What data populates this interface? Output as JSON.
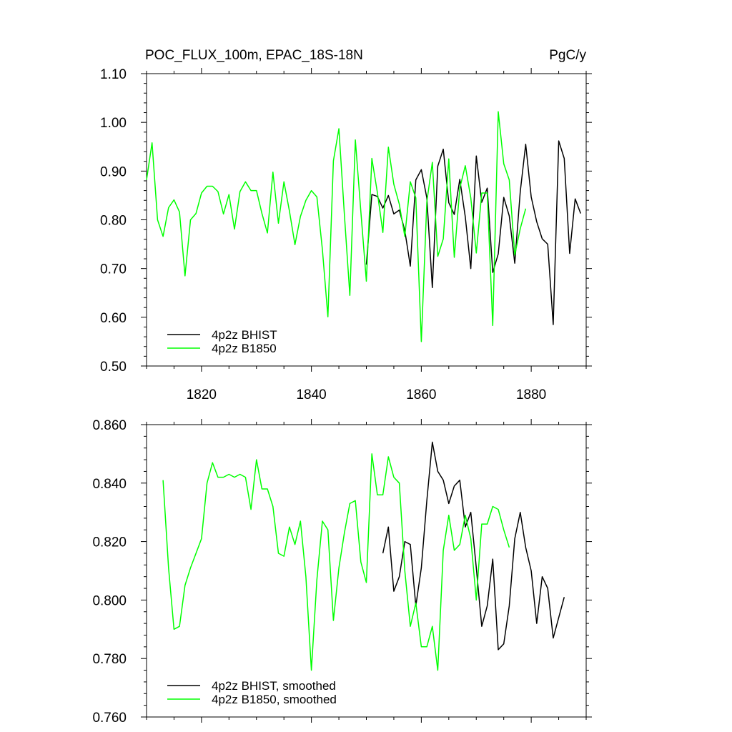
{
  "chart_data": [
    {
      "type": "line",
      "title_left": "POC_FLUX_100m, EPAC_18S-18N",
      "title_right": "PgC/y",
      "xlim": [
        1810,
        1890
      ],
      "ylim": [
        0.5,
        1.1
      ],
      "xticks": [
        1820,
        1840,
        1860,
        1880
      ],
      "xtick_labels": [
        "1820",
        "1840",
        "1860",
        "1880"
      ],
      "yticks": [
        0.5,
        0.6,
        0.7,
        0.8,
        0.9,
        1.0,
        1.1
      ],
      "ytick_labels": [
        "0.50",
        "0.60",
        "0.70",
        "0.80",
        "0.90",
        "1.00",
        "1.10"
      ],
      "legend": "bottom-left",
      "series": [
        {
          "name": "4p2z BHIST",
          "color": "#000000",
          "x": [
            1850,
            1851,
            1852,
            1853,
            1854,
            1855,
            1856,
            1857,
            1858,
            1859,
            1860,
            1861,
            1862,
            1863,
            1864,
            1865,
            1866,
            1867,
            1868,
            1869,
            1870,
            1871,
            1872,
            1873,
            1874,
            1875,
            1876,
            1877,
            1878,
            1879,
            1880,
            1881,
            1882,
            1883,
            1884,
            1885,
            1886,
            1887,
            1888,
            1889
          ],
          "y": [
            0.708,
            0.852,
            0.848,
            0.824,
            0.85,
            0.812,
            0.82,
            0.778,
            0.705,
            0.882,
            0.903,
            0.845,
            0.661,
            0.91,
            0.945,
            0.835,
            0.811,
            0.883,
            0.806,
            0.7,
            0.931,
            0.836,
            0.865,
            0.692,
            0.73,
            0.846,
            0.808,
            0.711,
            0.858,
            0.955,
            0.847,
            0.796,
            0.761,
            0.75,
            0.585,
            0.962,
            0.926,
            0.731,
            0.843,
            0.813
          ]
        },
        {
          "name": "4p2z B1850",
          "color": "#00ff00",
          "x": [
            1810,
            1811,
            1812,
            1813,
            1814,
            1815,
            1816,
            1817,
            1818,
            1819,
            1820,
            1821,
            1822,
            1823,
            1824,
            1825,
            1826,
            1827,
            1828,
            1829,
            1830,
            1831,
            1832,
            1833,
            1834,
            1835,
            1836,
            1837,
            1838,
            1839,
            1840,
            1841,
            1842,
            1843,
            1844,
            1845,
            1846,
            1847,
            1848,
            1849,
            1850,
            1851,
            1852,
            1853,
            1854,
            1855,
            1856,
            1857,
            1858,
            1859,
            1860,
            1861,
            1862,
            1863,
            1864,
            1865,
            1866,
            1867,
            1868,
            1869,
            1870,
            1871,
            1872,
            1873,
            1874,
            1875,
            1876,
            1877,
            1878,
            1879
          ],
          "y": [
            0.882,
            0.958,
            0.8,
            0.766,
            0.825,
            0.841,
            0.816,
            0.685,
            0.8,
            0.813,
            0.855,
            0.869,
            0.869,
            0.858,
            0.812,
            0.852,
            0.781,
            0.858,
            0.878,
            0.86,
            0.86,
            0.813,
            0.773,
            0.898,
            0.793,
            0.878,
            0.818,
            0.749,
            0.807,
            0.84,
            0.86,
            0.847,
            0.739,
            0.601,
            0.921,
            0.987,
            0.81,
            0.645,
            0.964,
            0.817,
            0.674,
            0.926,
            0.856,
            0.774,
            0.949,
            0.873,
            0.832,
            0.766,
            0.878,
            0.845,
            0.55,
            0.837,
            0.918,
            0.725,
            0.761,
            0.925,
            0.723,
            0.865,
            0.911,
            0.845,
            0.732,
            0.855,
            0.855,
            0.583,
            1.022,
            0.915,
            0.882,
            0.728,
            0.782,
            0.823
          ]
        }
      ]
    },
    {
      "type": "line",
      "xlim": [
        1810,
        1890
      ],
      "ylim": [
        0.76,
        0.86
      ],
      "xticks": [
        1820,
        1840,
        1860,
        1880
      ],
      "yticks": [
        0.76,
        0.78,
        0.8,
        0.82,
        0.84,
        0.86
      ],
      "ytick_labels": [
        "0.760",
        "0.780",
        "0.800",
        "0.820",
        "0.840",
        "0.860"
      ],
      "legend": "bottom-left",
      "series": [
        {
          "name": "4p2z BHIST, smoothed",
          "color": "#000000",
          "x": [
            1853,
            1854,
            1855,
            1856,
            1857,
            1858,
            1859,
            1860,
            1861,
            1862,
            1863,
            1864,
            1865,
            1866,
            1867,
            1868,
            1869,
            1870,
            1871,
            1872,
            1873,
            1874,
            1875,
            1876,
            1877,
            1878,
            1879,
            1880,
            1881,
            1882,
            1883,
            1884,
            1885,
            1886
          ],
          "y": [
            0.816,
            0.825,
            0.803,
            0.808,
            0.82,
            0.819,
            0.798,
            0.811,
            0.834,
            0.854,
            0.844,
            0.841,
            0.833,
            0.839,
            0.841,
            0.825,
            0.83,
            0.811,
            0.791,
            0.798,
            0.814,
            0.783,
            0.785,
            0.798,
            0.821,
            0.83,
            0.818,
            0.81,
            0.792,
            0.808,
            0.804,
            0.787,
            0.794,
            0.801
          ]
        },
        {
          "name": "4p2z B1850, smoothed",
          "color": "#00ff00",
          "x": [
            1813,
            1814,
            1815,
            1816,
            1817,
            1818,
            1819,
            1820,
            1821,
            1822,
            1823,
            1824,
            1825,
            1826,
            1827,
            1828,
            1829,
            1830,
            1831,
            1832,
            1833,
            1834,
            1835,
            1836,
            1837,
            1838,
            1839,
            1840,
            1841,
            1842,
            1843,
            1844,
            1845,
            1846,
            1847,
            1848,
            1849,
            1850,
            1851,
            1852,
            1853,
            1854,
            1855,
            1856,
            1857,
            1858,
            1859,
            1860,
            1861,
            1862,
            1863,
            1864,
            1865,
            1866,
            1867,
            1868,
            1869,
            1870,
            1871,
            1872,
            1873,
            1874,
            1875,
            1876
          ],
          "y": [
            0.841,
            0.811,
            0.79,
            0.791,
            0.805,
            0.811,
            0.816,
            0.821,
            0.84,
            0.847,
            0.842,
            0.842,
            0.843,
            0.842,
            0.843,
            0.842,
            0.831,
            0.848,
            0.838,
            0.838,
            0.832,
            0.816,
            0.815,
            0.825,
            0.819,
            0.827,
            0.808,
            0.776,
            0.807,
            0.827,
            0.824,
            0.793,
            0.811,
            0.823,
            0.833,
            0.834,
            0.813,
            0.806,
            0.85,
            0.836,
            0.836,
            0.849,
            0.842,
            0.84,
            0.81,
            0.791,
            0.799,
            0.784,
            0.784,
            0.791,
            0.776,
            0.817,
            0.829,
            0.817,
            0.819,
            0.829,
            0.821,
            0.8,
            0.826,
            0.826,
            0.832,
            0.831,
            0.824,
            0.818
          ]
        }
      ]
    }
  ]
}
